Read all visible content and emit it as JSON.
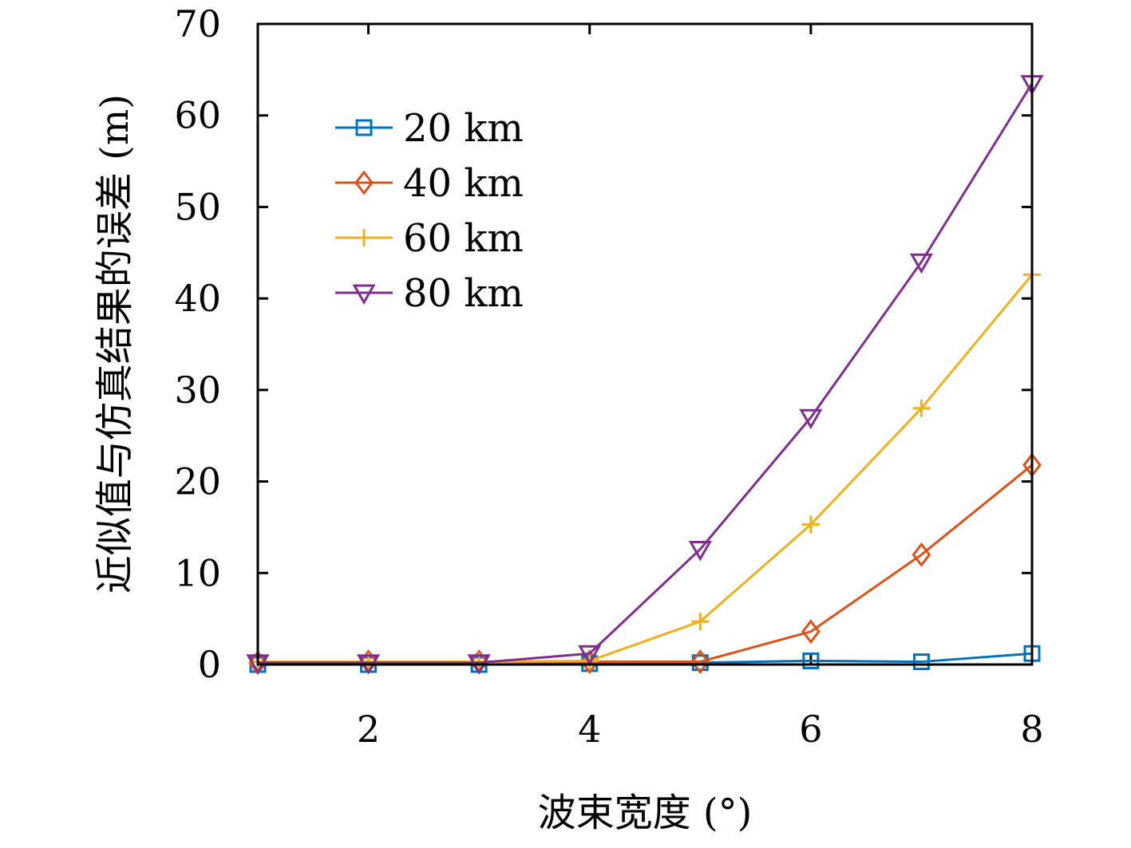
{
  "chart_data": {
    "type": "line",
    "xlabel": "波束宽度 (°)",
    "ylabel": "近似值与仿真结果的误差 (m)",
    "xlim": [
      1,
      8
    ],
    "ylim": [
      0,
      70
    ],
    "xticks": [
      "2",
      "4",
      "6",
      "8"
    ],
    "yticks": [
      "0",
      "10",
      "20",
      "30",
      "40",
      "50",
      "60",
      "70"
    ],
    "x": [
      1,
      2,
      3,
      4,
      5,
      6,
      7,
      8
    ],
    "legend_position": "top-left",
    "series": [
      {
        "name": "20 km",
        "color": "#0072BD",
        "marker": "square",
        "values": [
          0,
          0,
          0,
          0.1,
          0.2,
          0.4,
          0.3,
          1.2
        ]
      },
      {
        "name": "40 km",
        "color": "#D95319",
        "marker": "diamond",
        "values": [
          0.2,
          0.3,
          0.3,
          0.3,
          0.3,
          3.6,
          12,
          21.8
        ]
      },
      {
        "name": "60 km",
        "color": "#EDB120",
        "marker": "plus",
        "values": [
          0.3,
          0.3,
          0.3,
          0.4,
          4.7,
          15.3,
          28,
          42.6
        ]
      },
      {
        "name": "80 km",
        "color": "#7E2F8E",
        "marker": "triangle-down",
        "values": [
          0.2,
          0.2,
          0.2,
          1.2,
          12.6,
          27,
          44,
          63.5
        ]
      }
    ]
  }
}
